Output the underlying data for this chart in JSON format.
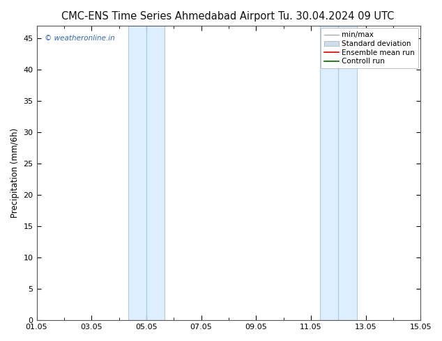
{
  "title_left": "CMC-ENS Time Series Ahmedabad Airport",
  "title_right": "Tu. 30.04.2024 09 UTC",
  "ylabel": "Precipitation (mm/6h)",
  "xlim_days": [
    0,
    14
  ],
  "ylim": [
    0,
    47
  ],
  "yticks": [
    0,
    5,
    10,
    15,
    20,
    25,
    30,
    35,
    40,
    45
  ],
  "xtick_labels": [
    "01.05",
    "03.05",
    "05.05",
    "07.05",
    "09.05",
    "11.05",
    "13.05",
    "15.05"
  ],
  "xtick_positions": [
    0,
    2,
    4,
    6,
    8,
    10,
    12,
    14
  ],
  "minor_xtick_positions": [
    1,
    3,
    5,
    7,
    9,
    11,
    13
  ],
  "shaded_bands": [
    {
      "x_start": 3.33,
      "x_end": 4.0,
      "color": "#ddeeff"
    },
    {
      "x_start": 4.0,
      "x_end": 4.67,
      "color": "#ddeeff"
    },
    {
      "x_start": 10.33,
      "x_end": 11.0,
      "color": "#ddeeff"
    },
    {
      "x_start": 11.0,
      "x_end": 11.67,
      "color": "#ddeeff"
    }
  ],
  "band_border_color": "#aaccdd",
  "watermark": "© weatheronline.in",
  "watermark_color": "#3366bb",
  "bg_color": "#ffffff",
  "plot_bg_color": "#ffffff",
  "border_color": "#555555",
  "legend_items": [
    {
      "label": "min/max",
      "lcolor": "#aaaaaa"
    },
    {
      "label": "Standard deviation",
      "lcolor": "#ccddee"
    },
    {
      "label": "Ensemble mean run",
      "lcolor": "#dd0000"
    },
    {
      "label": "Controll run",
      "lcolor": "#006600"
    }
  ],
  "title_fontsize": 10.5,
  "tick_label_fontsize": 8,
  "ylabel_fontsize": 8.5,
  "legend_fontsize": 7.5
}
